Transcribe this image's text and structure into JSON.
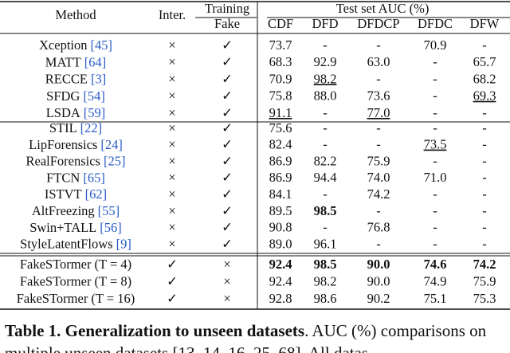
{
  "header": {
    "method": "Method",
    "inter": "Inter.",
    "training": "Training",
    "fake": "Fake",
    "test_set": "Test set AUC (%)",
    "datasets": [
      "CDF",
      "DFD",
      "DFDCP",
      "DFDC",
      "DFW"
    ]
  },
  "groups": [
    [
      {
        "method": "Xception",
        "cite": "[45]",
        "inter": "×",
        "fake": "✓",
        "auc": [
          "73.7",
          "-",
          "-",
          "70.9",
          "-"
        ]
      },
      {
        "method": "MATT",
        "cite": "[64]",
        "inter": "×",
        "fake": "✓",
        "auc": [
          "68.3",
          "92.9",
          "63.0",
          "-",
          "65.7"
        ]
      },
      {
        "method": "RECCE",
        "cite": "[3]",
        "inter": "×",
        "fake": "✓",
        "auc": [
          "70.9",
          "98.2",
          "-",
          "-",
          "68.2"
        ],
        "underline": [
          1
        ]
      },
      {
        "method": "SFDG",
        "cite": "[54]",
        "inter": "×",
        "fake": "✓",
        "auc": [
          "75.8",
          "88.0",
          "73.6",
          "-",
          "69.3"
        ],
        "underline": [
          4
        ]
      },
      {
        "method": "LSDA",
        "cite": "[59]",
        "inter": "×",
        "fake": "✓",
        "auc": [
          "91.1",
          "-",
          "77.0",
          "-",
          "-"
        ],
        "underline": [
          0,
          2
        ]
      }
    ],
    [
      {
        "method": "STIL",
        "cite": "[22]",
        "inter": "×",
        "fake": "✓",
        "auc": [
          "75.6",
          "-",
          "-",
          "-",
          "-"
        ]
      },
      {
        "method": "LipForensics",
        "cite": "[24]",
        "inter": "×",
        "fake": "✓",
        "auc": [
          "82.4",
          "-",
          "-",
          "73.5",
          "-"
        ],
        "underline": [
          3
        ]
      },
      {
        "method": "RealForensics",
        "cite": "[25]",
        "inter": "×",
        "fake": "✓",
        "auc": [
          "86.9",
          "82.2",
          "75.9",
          "-",
          "-"
        ]
      },
      {
        "method": "FTCN",
        "cite": "[65]",
        "inter": "×",
        "fake": "✓",
        "auc": [
          "86.9",
          "94.4",
          "74.0",
          "71.0",
          "-"
        ]
      },
      {
        "method": "ISTVT",
        "cite": "[62]",
        "inter": "×",
        "fake": "✓",
        "auc": [
          "84.1",
          "-",
          "74.2",
          "-",
          "-"
        ]
      },
      {
        "method": "AltFreezing",
        "cite": "[55]",
        "inter": "×",
        "fake": "✓",
        "auc": [
          "89.5",
          "98.5",
          "-",
          "-",
          "-"
        ],
        "bold": [
          1
        ]
      },
      {
        "method": "Swin+TALL",
        "cite": "[56]",
        "inter": "×",
        "fake": "✓",
        "auc": [
          "90.8",
          "-",
          "76.8",
          "-",
          "-"
        ]
      },
      {
        "method": "StyleLatentFlows",
        "cite": "[9]",
        "inter": "×",
        "fake": "✓",
        "auc": [
          "89.0",
          "96.1",
          "-",
          "-",
          "-"
        ]
      }
    ],
    [
      {
        "method": "FakeSTormer (T = 4)",
        "inter": "✓",
        "fake": "×",
        "auc": [
          "92.4",
          "98.5",
          "90.0",
          "74.6",
          "74.2"
        ],
        "bold": [
          0,
          1,
          2,
          3,
          4
        ]
      },
      {
        "method": "FakeSTormer (T = 8)",
        "inter": "✓",
        "fake": "×",
        "auc": [
          "92.4",
          "98.2",
          "90.0",
          "74.9",
          "75.9"
        ]
      },
      {
        "method": "FakeSTormer (T = 16)",
        "inter": "✓",
        "fake": "×",
        "auc": [
          "92.8",
          "98.6",
          "90.2",
          "75.1",
          "75.3"
        ]
      }
    ]
  ],
  "caption": {
    "label": "Table 1.",
    "title": "Generalization to unseen datasets",
    "text": ". AUC (%) comparisons on multiple unseen datasets [13, 14, 16, 25, 68]. All datas"
  }
}
